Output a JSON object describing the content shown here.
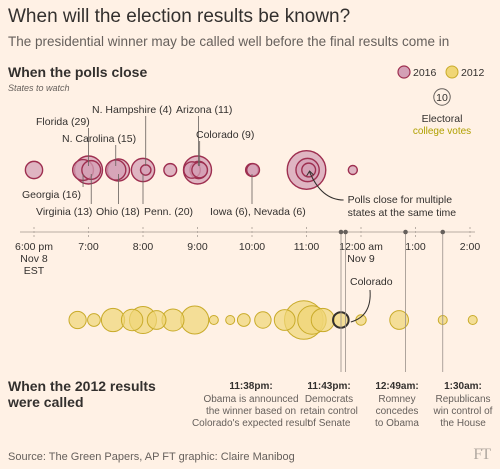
{
  "header": {
    "title": "When will the election results be known?",
    "subtitle": "The presidential winner may be called well before the final results come in"
  },
  "section_top": {
    "title": "When the polls close",
    "subtitle": "States to watch"
  },
  "section_bottom": {
    "title_line1": "When the 2012 results",
    "title_line2": "were called"
  },
  "footer": {
    "source": "Source: The Green Papers, AP   FT graphic: Claire Manibog",
    "logo": "FT"
  },
  "colors": {
    "y2016_fill": "#d4a0b6",
    "y2016_stroke": "#9e2f50",
    "y2012_fill": "#f0d676",
    "y2012_stroke": "#c9ab2a",
    "background": "#fff1e5"
  },
  "chart_data": {
    "type": "scatter",
    "legend": {
      "series": [
        "2016",
        "2012"
      ],
      "size_key_value": 10,
      "size_key_label_line1": "Electoral",
      "size_key_label_line2": "college votes"
    },
    "x_ticks": [
      {
        "t": 18,
        "lines": [
          "6:00 pm",
          "Nov 8",
          "EST"
        ]
      },
      {
        "t": 19,
        "lines": [
          "7:00"
        ]
      },
      {
        "t": 20,
        "lines": [
          "8:00"
        ]
      },
      {
        "t": 21,
        "lines": [
          "9:00"
        ]
      },
      {
        "t": 22,
        "lines": [
          "10:00"
        ]
      },
      {
        "t": 23,
        "lines": [
          "11:00"
        ]
      },
      {
        "t": 24,
        "lines": [
          "12:00 am",
          "Nov 9"
        ]
      },
      {
        "t": 25,
        "lines": [
          "1:00"
        ]
      },
      {
        "t": 26,
        "lines": [
          "2:00"
        ]
      }
    ],
    "series_2016_poll_closings": [
      {
        "t": 18.0,
        "ev": 11
      },
      {
        "t": 18.9,
        "ev": 16
      },
      {
        "t": 19.0,
        "ev": 29
      },
      {
        "t": 19.05,
        "ev": 13
      },
      {
        "t": 19.5,
        "ev": 15
      },
      {
        "t": 19.55,
        "ev": 18
      },
      {
        "t": 20.0,
        "ev": 20
      },
      {
        "t": 20.05,
        "ev": 4
      },
      {
        "t": 20.5,
        "ev": 6
      },
      {
        "t": 20.9,
        "ev": 10
      },
      {
        "t": 21.0,
        "ev": 29
      },
      {
        "t": 21.02,
        "ev": 11
      },
      {
        "t": 21.04,
        "ev": 9
      },
      {
        "t": 22.0,
        "ev": 6
      },
      {
        "t": 22.02,
        "ev": 6
      },
      {
        "t": 23.0,
        "ev": 55
      },
      {
        "t": 23.02,
        "ev": 20
      },
      {
        "t": 23.04,
        "ev": 7
      },
      {
        "t": 23.85,
        "ev": 3
      }
    ],
    "series_2012_calls": [
      {
        "t": 18.8,
        "ev": 11
      },
      {
        "t": 19.1,
        "ev": 6
      },
      {
        "t": 19.45,
        "ev": 20
      },
      {
        "t": 19.8,
        "ev": 17
      },
      {
        "t": 20.0,
        "ev": 27
      },
      {
        "t": 20.25,
        "ev": 13
      },
      {
        "t": 20.55,
        "ev": 18
      },
      {
        "t": 20.95,
        "ev": 29
      },
      {
        "t": 21.3,
        "ev": 3
      },
      {
        "t": 21.6,
        "ev": 3
      },
      {
        "t": 21.85,
        "ev": 6
      },
      {
        "t": 22.2,
        "ev": 10
      },
      {
        "t": 22.6,
        "ev": 16
      },
      {
        "t": 22.95,
        "ev": 55
      },
      {
        "t": 23.1,
        "ev": 30
      },
      {
        "t": 23.3,
        "ev": 20
      },
      {
        "t": 23.63,
        "ev": 9
      },
      {
        "t": 24.0,
        "ev": 4
      },
      {
        "t": 24.7,
        "ev": 13
      },
      {
        "t": 25.5,
        "ev": 3
      },
      {
        "t": 26.05,
        "ev": 3
      }
    ],
    "state_labels": [
      {
        "text": "Florida (29)",
        "t": 19.0
      },
      {
        "text": "N. Carolina (15)",
        "t": 19.5
      },
      {
        "text": "N. Hampshire (4)",
        "t": 20.05
      },
      {
        "text": "Arizona (11)",
        "t": 21.02
      },
      {
        "text": "Colorado (9)",
        "t": 21.04
      },
      {
        "text": "Georgia (16)",
        "t": 18.9
      },
      {
        "text": "Virginia (13)",
        "t": 19.05
      },
      {
        "text": "Ohio (18)",
        "t": 19.55
      },
      {
        "text": "Penn. (20)",
        "t": 20.0
      },
      {
        "text": "Iowa (6), Nevada (6)",
        "t": 22.0
      }
    ],
    "callouts": {
      "multi_state_line1": "Polls close for multiple",
      "multi_state_line2": "states at the same time",
      "colorado_2012": "Colorado"
    },
    "events": [
      {
        "t": 23.633,
        "time": "11:38pm:",
        "lines": [
          "Obama is announced",
          "the winner based on",
          "Colorado's expected result"
        ]
      },
      {
        "t": 23.717,
        "time": "11:43pm:",
        "lines": [
          "Democrats",
          "retain control",
          "of Senate"
        ]
      },
      {
        "t": 24.817,
        "time": "12:49am:",
        "lines": [
          "Romney",
          "concedes",
          "to Obama"
        ]
      },
      {
        "t": 25.5,
        "time": "1:30am:",
        "lines": [
          "Republicans",
          "win control of",
          "the House"
        ]
      }
    ]
  }
}
